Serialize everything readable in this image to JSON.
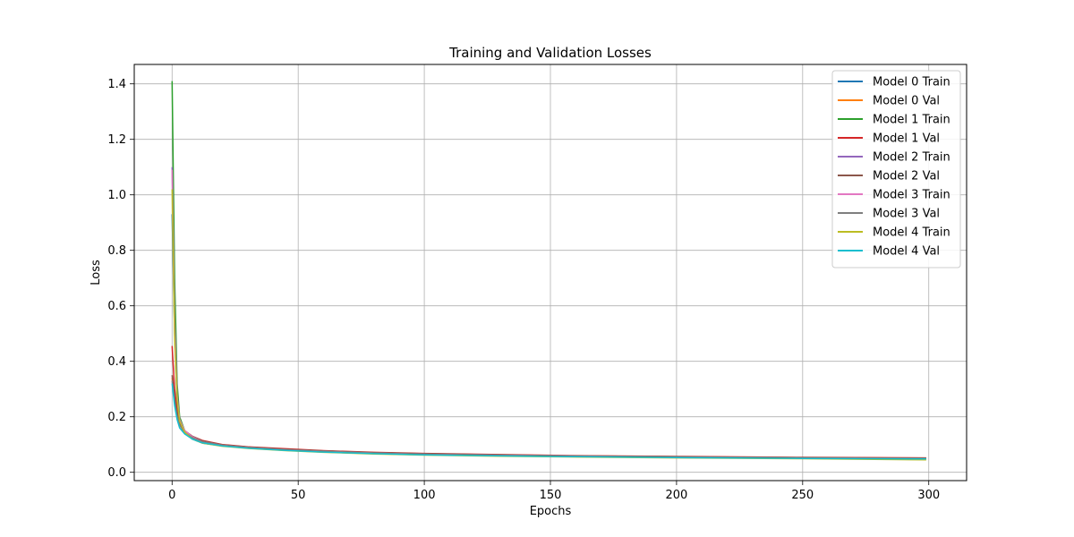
{
  "chart_data": {
    "type": "line",
    "title": "Training and Validation Losses",
    "xlabel": "Epochs",
    "ylabel": "Loss",
    "xlim": [
      -15,
      315
    ],
    "ylim": [
      -0.03,
      1.47
    ],
    "xticks": [
      0,
      50,
      100,
      150,
      200,
      250,
      300
    ],
    "yticks": [
      0.0,
      0.2,
      0.4,
      0.6,
      0.8,
      1.0,
      1.2,
      1.4
    ],
    "xtick_labels": [
      "0",
      "50",
      "100",
      "150",
      "200",
      "250",
      "300"
    ],
    "ytick_labels": [
      "0.0",
      "0.2",
      "0.4",
      "0.6",
      "0.8",
      "1.0",
      "1.2",
      "1.4"
    ],
    "grid": true,
    "legend_position": "top-right",
    "series": [
      {
        "name": "Model 0 Train",
        "color": "#1f77b4",
        "x": [
          0,
          1,
          2,
          3,
          5,
          8,
          12,
          20,
          30,
          45,
          60,
          80,
          100,
          130,
          160,
          200,
          250,
          299
        ],
        "values": [
          0.93,
          0.5,
          0.25,
          0.18,
          0.14,
          0.12,
          0.105,
          0.095,
          0.088,
          0.08,
          0.074,
          0.068,
          0.064,
          0.06,
          0.057,
          0.054,
          0.051,
          0.049
        ]
      },
      {
        "name": "Model 0 Val",
        "color": "#ff7f0e",
        "x": [
          0,
          1,
          2,
          3,
          5,
          8,
          12,
          20,
          30,
          45,
          60,
          80,
          100,
          130,
          160,
          200,
          250,
          299
        ],
        "values": [
          0.34,
          0.26,
          0.2,
          0.17,
          0.145,
          0.128,
          0.112,
          0.098,
          0.09,
          0.082,
          0.076,
          0.07,
          0.066,
          0.062,
          0.059,
          0.056,
          0.053,
          0.051
        ]
      },
      {
        "name": "Model 1 Train",
        "color": "#2ca02c",
        "x": [
          0,
          1,
          2,
          3,
          5,
          8,
          12,
          20,
          30,
          45,
          60,
          80,
          100,
          130,
          160,
          200,
          250,
          299
        ],
        "values": [
          1.41,
          0.7,
          0.32,
          0.2,
          0.15,
          0.125,
          0.108,
          0.097,
          0.089,
          0.081,
          0.075,
          0.069,
          0.065,
          0.061,
          0.058,
          0.055,
          0.052,
          0.05
        ]
      },
      {
        "name": "Model 1 Val",
        "color": "#d62728",
        "x": [
          0,
          1,
          2,
          3,
          5,
          8,
          12,
          20,
          30,
          45,
          60,
          80,
          100,
          130,
          160,
          200,
          250,
          299
        ],
        "values": [
          0.455,
          0.3,
          0.22,
          0.18,
          0.15,
          0.13,
          0.115,
          0.1,
          0.092,
          0.085,
          0.078,
          0.072,
          0.068,
          0.064,
          0.06,
          0.057,
          0.054,
          0.052
        ]
      },
      {
        "name": "Model 2 Train",
        "color": "#9467bd",
        "x": [
          0,
          1,
          2,
          3,
          5,
          8,
          12,
          20,
          30,
          45,
          60,
          80,
          100,
          130,
          160,
          200,
          250,
          299
        ],
        "values": [
          1.1,
          0.55,
          0.28,
          0.19,
          0.145,
          0.122,
          0.106,
          0.096,
          0.088,
          0.08,
          0.074,
          0.068,
          0.064,
          0.06,
          0.057,
          0.054,
          0.051,
          0.049
        ]
      },
      {
        "name": "Model 2 Val",
        "color": "#8c564b",
        "x": [
          0,
          1,
          2,
          3,
          5,
          8,
          12,
          20,
          30,
          45,
          60,
          80,
          100,
          130,
          160,
          200,
          250,
          299
        ],
        "values": [
          0.35,
          0.27,
          0.21,
          0.175,
          0.148,
          0.13,
          0.113,
          0.099,
          0.091,
          0.083,
          0.077,
          0.071,
          0.067,
          0.063,
          0.059,
          0.056,
          0.053,
          0.051
        ]
      },
      {
        "name": "Model 3 Train",
        "color": "#e377c2",
        "x": [
          0,
          1,
          2,
          3,
          5,
          8,
          12,
          20,
          30,
          45,
          60,
          80,
          100,
          130,
          160,
          200,
          250,
          299
        ],
        "values": [
          1.09,
          0.52,
          0.27,
          0.19,
          0.15,
          0.128,
          0.11,
          0.097,
          0.089,
          0.081,
          0.075,
          0.069,
          0.065,
          0.061,
          0.058,
          0.054,
          0.051,
          0.049
        ]
      },
      {
        "name": "Model 3 Val",
        "color": "#7f7f7f",
        "x": [
          0,
          1,
          2,
          3,
          5,
          8,
          12,
          20,
          30,
          45,
          60,
          80,
          100,
          130,
          160,
          200,
          250,
          299
        ],
        "values": [
          0.33,
          0.25,
          0.2,
          0.17,
          0.143,
          0.125,
          0.11,
          0.097,
          0.089,
          0.081,
          0.075,
          0.069,
          0.065,
          0.061,
          0.058,
          0.055,
          0.052,
          0.05
        ]
      },
      {
        "name": "Model 4 Train",
        "color": "#bcbd22",
        "x": [
          0,
          1,
          2,
          3,
          5,
          8,
          12,
          20,
          30,
          45,
          60,
          80,
          100,
          130,
          160,
          200,
          250,
          299
        ],
        "values": [
          1.02,
          0.48,
          0.26,
          0.185,
          0.145,
          0.12,
          0.105,
          0.094,
          0.086,
          0.078,
          0.072,
          0.066,
          0.062,
          0.058,
          0.055,
          0.052,
          0.049,
          0.045
        ]
      },
      {
        "name": "Model 4 Val",
        "color": "#17becf",
        "x": [
          0,
          1,
          2,
          3,
          5,
          8,
          12,
          20,
          30,
          45,
          60,
          80,
          100,
          130,
          160,
          200,
          250,
          299
        ],
        "values": [
          0.32,
          0.24,
          0.19,
          0.16,
          0.138,
          0.12,
          0.106,
          0.095,
          0.087,
          0.079,
          0.073,
          0.067,
          0.063,
          0.059,
          0.056,
          0.053,
          0.05,
          0.048
        ]
      }
    ]
  }
}
